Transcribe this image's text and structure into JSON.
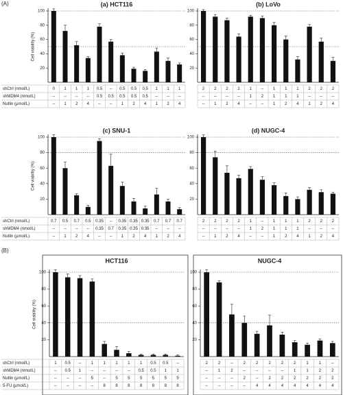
{
  "figure_labels": [
    "(A)",
    "(B)"
  ],
  "chart_data": [
    {
      "type": "bar",
      "title": "(a) HCT116",
      "ylabel": "Cell viability (%)",
      "ylim": [
        0,
        100
      ],
      "yticks": [
        20,
        40,
        60,
        80,
        100
      ],
      "ref_lines": [
        100,
        50
      ],
      "color": "#111111",
      "values": [
        100,
        72,
        52,
        34,
        78,
        57,
        38,
        19,
        16,
        43,
        30,
        25
      ],
      "errors": [
        3,
        8,
        5,
        2,
        4,
        3,
        3,
        2,
        2,
        5,
        4,
        2
      ],
      "row_labels": [
        "shCtrl (nmol/L)",
        "shMDM4 (nmol/L)",
        "Nutlin (μmol/L)"
      ],
      "table_rows": [
        [
          "0",
          "1",
          "1",
          "1",
          "0.5",
          "--",
          "0.5",
          "0.5",
          "0.5",
          "1",
          "1",
          "1"
        ],
        [
          "--",
          "--",
          "--",
          "--",
          "0.5",
          "0.5",
          "0.5",
          "0.5",
          "0.5",
          "--",
          "--",
          "--"
        ],
        [
          "--",
          "1",
          "2",
          "4",
          "--",
          "--",
          "1",
          "2",
          "4",
          "1",
          "2",
          "4"
        ]
      ]
    },
    {
      "type": "bar",
      "title": "(b) LoVo",
      "ylim": [
        0,
        100
      ],
      "yticks": [
        20,
        40,
        60,
        80,
        100
      ],
      "ref_lines": [
        100,
        50
      ],
      "color": "#111111",
      "values": [
        100,
        92,
        87,
        64,
        92,
        90,
        80,
        60,
        32,
        78,
        57,
        30
      ],
      "errors": [
        2,
        3,
        3,
        4,
        2,
        3,
        4,
        5,
        4,
        3,
        5,
        5
      ],
      "table_rows": [
        [
          "2",
          "2",
          "2",
          "2",
          "1",
          "--",
          "1",
          "1",
          "1",
          "2",
          "2",
          "2"
        ],
        [
          "--",
          "--",
          "--",
          "--",
          "1",
          "2",
          "1",
          "1",
          "1",
          "--",
          "--",
          "--"
        ],
        [
          "--",
          "1",
          "2",
          "4",
          "--",
          "--",
          "1",
          "2",
          "4",
          "1",
          "2",
          "4"
        ]
      ]
    },
    {
      "type": "bar",
      "title": "(c) SNU-1",
      "ylabel": "Cell viability (%)",
      "ylim": [
        0,
        100
      ],
      "yticks": [
        20,
        40,
        60,
        80,
        100
      ],
      "ref_lines": [
        100,
        80
      ],
      "color": "#111111",
      "values": [
        100,
        60,
        25,
        10,
        95,
        63,
        37,
        17,
        8,
        26,
        17,
        7
      ],
      "errors": [
        3,
        8,
        2,
        2,
        3,
        15,
        5,
        4,
        3,
        8,
        3,
        2
      ],
      "row_labels": [
        "shCtrl (nmol/L)",
        "shMDM4 (nmol/L)",
        "Nutlin (μmol/L)"
      ],
      "table_rows": [
        [
          "0.7",
          "0.5",
          "0.7",
          "0.5",
          "0.35",
          "--",
          "0.35",
          "0.35",
          "0.35",
          "0.7",
          "0.7",
          "0.7"
        ],
        [
          "--",
          "--",
          "--",
          "--",
          "0.35",
          "0.7",
          "0.35",
          "0.35",
          "0.35",
          "--",
          "--",
          "--"
        ],
        [
          "--",
          "1",
          "2",
          "4",
          "--",
          "--",
          "1",
          "2",
          "4",
          "1",
          "2",
          "4"
        ]
      ]
    },
    {
      "type": "bar",
      "title": "(d) NUGC-4",
      "ylim": [
        0,
        100
      ],
      "yticks": [
        20,
        40,
        60,
        80,
        100
      ],
      "ref_lines": [
        100,
        80
      ],
      "color": "#111111",
      "values": [
        100,
        74,
        54,
        47,
        59,
        45,
        38,
        24,
        20,
        32,
        29,
        27
      ],
      "errors": [
        3,
        8,
        9,
        4,
        3,
        4,
        3,
        4,
        3,
        3,
        3,
        2
      ],
      "table_rows": [
        [
          "2",
          "2",
          "2",
          "2",
          "1",
          "--",
          "1",
          "1",
          "1",
          "2",
          "2",
          "2"
        ],
        [
          "--",
          "--",
          "--",
          "--",
          "1",
          "2",
          "1",
          "1",
          "1",
          "--",
          "--",
          "--"
        ],
        [
          "--",
          "1",
          "2",
          "4",
          "--",
          "--",
          "1",
          "2",
          "4",
          "1",
          "2",
          "4"
        ]
      ]
    },
    {
      "type": "bar",
      "title": "HCT116",
      "ylabel": "Cell viability (%)",
      "ylim": [
        0,
        100
      ],
      "yticks": [
        20,
        40,
        60,
        80,
        100
      ],
      "ref_lines": [
        100,
        40
      ],
      "color": "#111111",
      "values": [
        100,
        94,
        93,
        89,
        15,
        8,
        4,
        2,
        2,
        2,
        1
      ],
      "errors": [
        3,
        4,
        3,
        3,
        3,
        4,
        2,
        1,
        1,
        1,
        1
      ],
      "row_labels": [
        "shCtrl (nmol/L)",
        "shMDM4 (nmol/L)",
        "Nutlin (μmol/L)",
        "5-FU (μmol/L)"
      ],
      "table_rows": [
        [
          "1",
          "0.5",
          "--",
          "1",
          "1",
          "1",
          "1",
          "1",
          "0.5",
          "0.5",
          "--"
        ],
        [
          "--",
          "0.5",
          "1",
          "--",
          "--",
          "--",
          "--",
          "0.5",
          "0.5",
          "1",
          "1"
        ],
        [
          "--",
          "--",
          "--",
          "5",
          "--",
          "5",
          "5",
          "5",
          "5",
          "5",
          "5"
        ],
        [
          "--",
          "--",
          "--",
          "--",
          "8",
          "8",
          "8",
          "8",
          "8",
          "8",
          "8"
        ]
      ]
    },
    {
      "type": "bar",
      "title": "NUGC-4",
      "ylim": [
        0,
        100
      ],
      "yticks": [
        20,
        40,
        60,
        80,
        100
      ],
      "ref_lines": [
        100,
        40
      ],
      "color": "#111111",
      "values": [
        100,
        88,
        50,
        40,
        27,
        37,
        26,
        17,
        14,
        19,
        16
      ],
      "errors": [
        3,
        2,
        12,
        8,
        3,
        12,
        3,
        2,
        2,
        2,
        2
      ],
      "table_rows": [
        [
          "2",
          "2",
          "--",
          "2",
          "2",
          "2",
          "2",
          "2",
          "1",
          "1",
          "--"
        ],
        [
          "--",
          "1",
          "2",
          "--",
          "--",
          "--",
          "--",
          "1",
          "1",
          "2",
          "2"
        ],
        [
          "--",
          "--",
          "--",
          "2",
          "--",
          "2",
          "2",
          "2",
          "2",
          "2",
          "2"
        ],
        [
          "--",
          "--",
          "--",
          "--",
          "4",
          "4",
          "4",
          "4",
          "4",
          "4",
          "4"
        ]
      ]
    }
  ]
}
